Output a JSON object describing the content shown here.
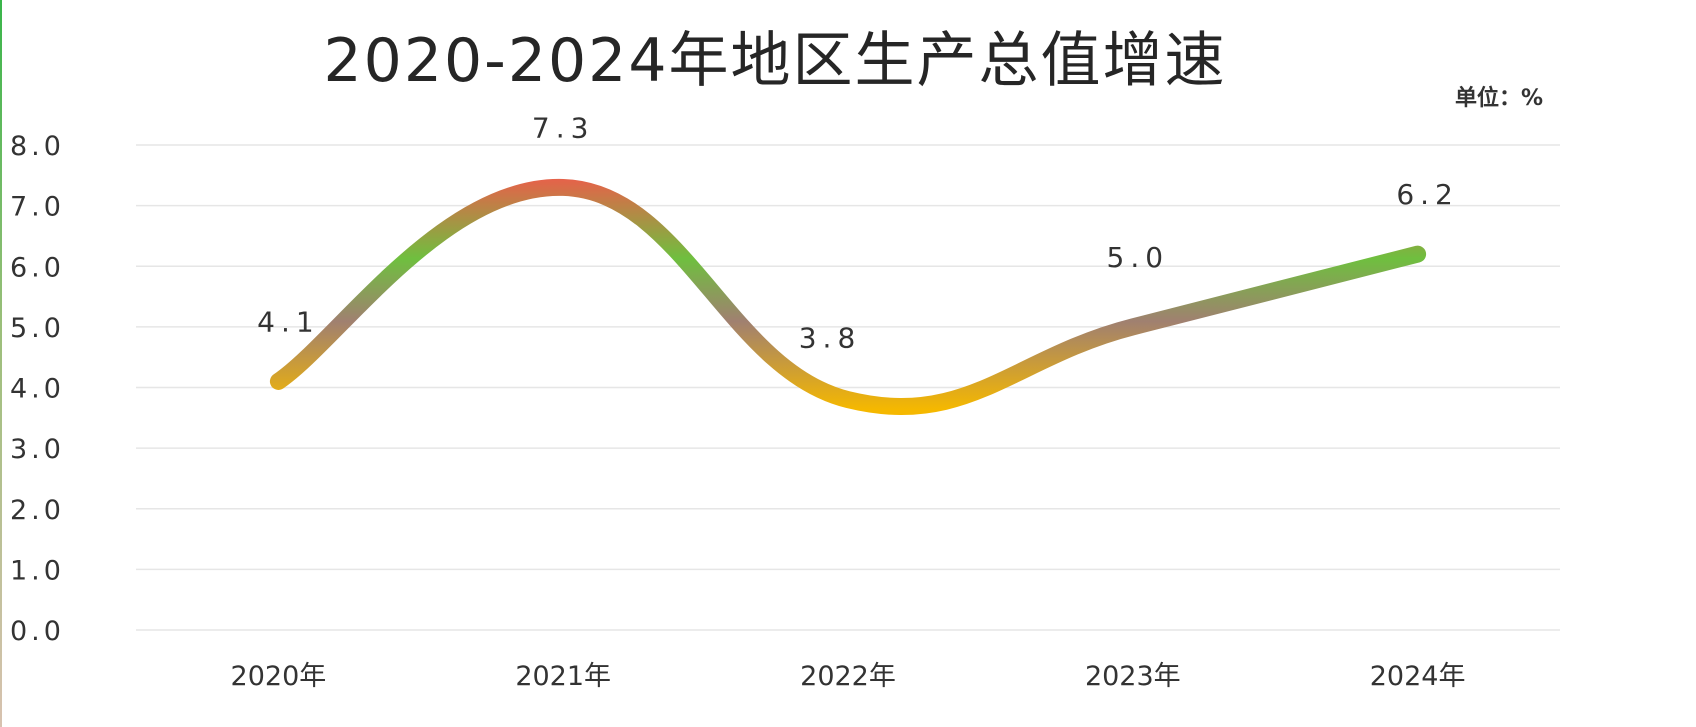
{
  "chart_data": {
    "type": "line",
    "title": "2020-2024年地区生产总值增速",
    "unit_label": "单位：%",
    "categories": [
      "2020年",
      "2021年",
      "2022年",
      "2023年",
      "2024年"
    ],
    "series": [
      {
        "values": [
          4.1,
          7.3,
          3.8,
          5.0,
          6.2
        ]
      }
    ],
    "data_labels": [
      "4.1",
      "7.3",
      "3.8",
      "5.0",
      "6.2"
    ],
    "y_ticks": [
      "0.0",
      "1.0",
      "2.0",
      "3.0",
      "4.0",
      "5.0",
      "6.0",
      "7.0",
      "8.0"
    ],
    "ylim": [
      0,
      8
    ],
    "smooth": true,
    "grid": true,
    "legend": "none",
    "colors": {
      "line_low": "#f5b800",
      "line_mid": "#a08070",
      "line_green": "#6fbf3f",
      "line_peak": "#e8604a",
      "grid": "#e6e6e6",
      "text": "#333333"
    }
  }
}
